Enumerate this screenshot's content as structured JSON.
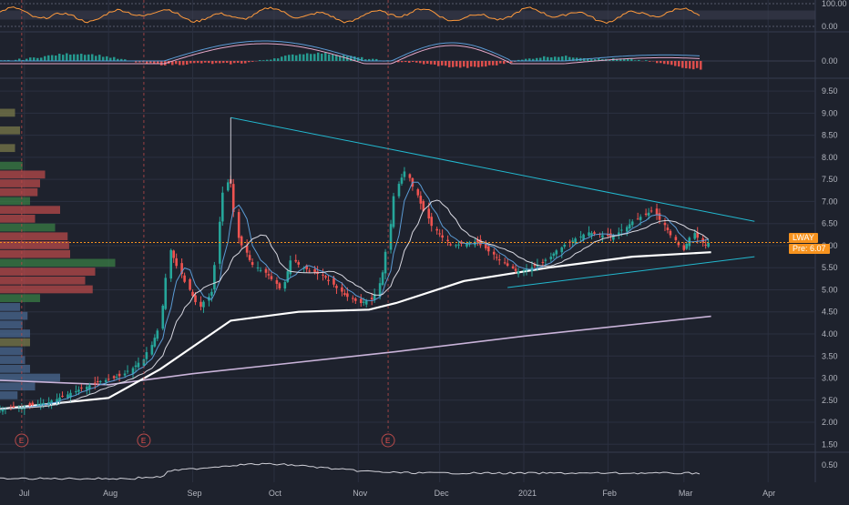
{
  "symbol": "LWAY",
  "pre_market": {
    "label": "Pre",
    "value": "6.07"
  },
  "colors": {
    "background": "#1e222d",
    "grid": "#2b3040",
    "up": "#26a69a",
    "down": "#ef5350",
    "trendline": "#22b8cf",
    "ma_long": "#ffffff",
    "ma_200": "#c9b3d9",
    "rsi": "#ff9a3c",
    "price_line": "#f7931e"
  },
  "earnings_marker": "E",
  "chart_data": [
    {
      "type": "line",
      "name": "rsi-panel",
      "y_ticks": [
        "100.00",
        "0.00"
      ],
      "ylim": [
        0,
        100
      ],
      "bands": [
        30,
        70
      ]
    },
    {
      "type": "bar",
      "name": "macd-panel",
      "y_ticks": [
        "0.00"
      ]
    },
    {
      "type": "candlestick",
      "name": "price-panel",
      "x_ticks": [
        "Jul",
        "Aug",
        "Sep",
        "Oct",
        "Nov",
        "Dec",
        "2021",
        "Feb",
        "Mar",
        "Apr"
      ],
      "y_ticks": [
        "9.50",
        "9.00",
        "8.50",
        "8.00",
        "7.50",
        "7.00",
        "6.50",
        "6.00",
        "5.50",
        "5.00",
        "4.50",
        "4.00",
        "3.50",
        "3.00",
        "2.50",
        "2.00",
        "1.50"
      ],
      "ylim": [
        1.3,
        9.75
      ],
      "last_price": 6.07,
      "price_path": [
        [
          "2020-06-22",
          2.3
        ],
        [
          "2020-07-01",
          2.35
        ],
        [
          "2020-07-10",
          2.45
        ],
        [
          "2020-07-20",
          2.7
        ],
        [
          "2020-07-28",
          2.9
        ],
        [
          "2020-08-06",
          3.05
        ],
        [
          "2020-08-14",
          3.4
        ],
        [
          "2020-08-20",
          4.1
        ],
        [
          "2020-08-24",
          5.9
        ],
        [
          "2020-08-31",
          5.0
        ],
        [
          "2020-09-04",
          4.6
        ],
        [
          "2020-09-09",
          5.0
        ],
        [
          "2020-09-12",
          7.1
        ],
        [
          "2020-09-15",
          7.6
        ],
        [
          "2020-09-18",
          6.2
        ],
        [
          "2020-09-23",
          5.6
        ],
        [
          "2020-09-30",
          5.3
        ],
        [
          "2020-10-04",
          5.0
        ],
        [
          "2020-10-08",
          5.7
        ],
        [
          "2020-10-12",
          5.5
        ],
        [
          "2020-10-20",
          5.3
        ],
        [
          "2020-10-27",
          4.9
        ],
        [
          "2020-11-02",
          4.7
        ],
        [
          "2020-11-07",
          4.8
        ],
        [
          "2020-11-11",
          5.5
        ],
        [
          "2020-11-15",
          7.3
        ],
        [
          "2020-11-19",
          7.7
        ],
        [
          "2020-11-24",
          7.0
        ],
        [
          "2020-11-29",
          6.4
        ],
        [
          "2020-12-06",
          6.0
        ],
        [
          "2020-12-15",
          6.1
        ],
        [
          "2020-12-23",
          5.7
        ],
        [
          "2020-12-30",
          5.4
        ],
        [
          "2021-01-08",
          5.6
        ],
        [
          "2021-01-16",
          6.0
        ],
        [
          "2021-01-25",
          6.3
        ],
        [
          "2021-02-03",
          6.2
        ],
        [
          "2021-02-12",
          6.6
        ],
        [
          "2021-02-18",
          6.8
        ],
        [
          "2021-02-24",
          6.3
        ],
        [
          "2021-03-01",
          5.9
        ],
        [
          "2021-03-05",
          6.3
        ],
        [
          "2021-03-09",
          6.0
        ],
        [
          "2021-03-11",
          6.07
        ]
      ],
      "ma_long_path": [
        [
          "2020-06-22",
          2.3
        ],
        [
          "2020-08-01",
          2.55
        ],
        [
          "2020-08-20",
          3.2
        ],
        [
          "2020-09-15",
          4.3
        ],
        [
          "2020-10-10",
          4.5
        ],
        [
          "2020-11-05",
          4.55
        ],
        [
          "2020-11-15",
          4.7
        ],
        [
          "2020-12-10",
          5.2
        ],
        [
          "2021-01-10",
          5.5
        ],
        [
          "2021-02-10",
          5.75
        ],
        [
          "2021-03-11",
          5.85
        ]
      ],
      "ma_200_path": [
        [
          "2020-06-22",
          2.95
        ],
        [
          "2020-08-01",
          2.85
        ],
        [
          "2020-09-01",
          3.1
        ],
        [
          "2020-10-01",
          3.3
        ],
        [
          "2020-11-15",
          3.6
        ],
        [
          "2021-01-01",
          3.95
        ],
        [
          "2021-03-11",
          4.4
        ]
      ],
      "triangle": {
        "upper": [
          [
            "2020-09-15",
            8.9
          ],
          [
            "2021-03-27",
            6.55
          ]
        ],
        "lower": [
          [
            "2020-12-26",
            5.05
          ],
          [
            "2021-03-27",
            5.75
          ]
        ],
        "apex_vertical": [
          [
            "2020-09-15",
            7.4
          ],
          [
            "2020-09-15",
            8.9
          ]
        ]
      },
      "earnings_dates": [
        "2020-06-30",
        "2020-08-14",
        "2020-11-12"
      ]
    },
    {
      "type": "line",
      "name": "volume-ma-panel",
      "y_ticks": [
        "0.50"
      ]
    }
  ]
}
